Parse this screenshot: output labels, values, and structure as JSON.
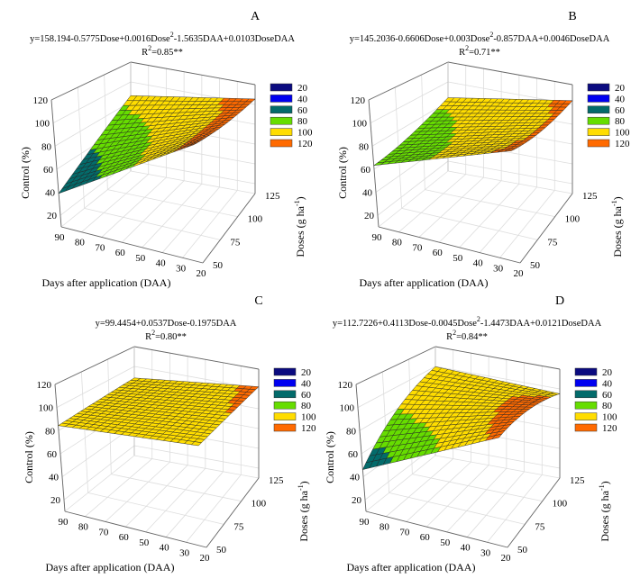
{
  "chart_data": [
    {
      "type": "surface3d",
      "panel_label": "A",
      "equation": {
        "pre": "y=158.194-0.5775Dose+0.0016Dose",
        "sup": "2",
        "post": "-1.5635DAA+0.0103DoseDAA"
      },
      "r2": {
        "pre": "R",
        "sup": "2",
        "post": "=0.85**"
      },
      "model": {
        "intercept": 158.194,
        "dose": -0.5775,
        "dose2": 0.0016,
        "daa": -1.5635,
        "dose_daa": 0.0103
      }
    },
    {
      "type": "surface3d",
      "panel_label": "B",
      "equation": {
        "pre": "y=145.2036-0.6606Dose+0.003Dose",
        "sup": "2",
        "post": "-0.857DAA+0.0046DoseDAA"
      },
      "r2": {
        "pre": "R",
        "sup": "2",
        "post": "=0.71**"
      },
      "model": {
        "intercept": 145.2036,
        "dose": -0.6606,
        "dose2": 0.003,
        "daa": -0.857,
        "dose_daa": 0.0046
      }
    },
    {
      "type": "surface3d",
      "panel_label": "C",
      "equation": {
        "pre": "y=99.4454+0.0537Dose-0.1975DAA",
        "sup": "",
        "post": ""
      },
      "r2": {
        "pre": "R",
        "sup": "2",
        "post": "=0.80**"
      },
      "model": {
        "intercept": 99.4454,
        "dose": 0.0537,
        "dose2": 0,
        "daa": -0.1975,
        "dose_daa": 0
      }
    },
    {
      "type": "surface3d",
      "panel_label": "D",
      "equation": {
        "pre": "y=112.7226+0.4113Dose-0.0045Dose",
        "sup": "2",
        "post": "-1.4473DAA+0.0121DoseDAA"
      },
      "r2": {
        "pre": "R",
        "sup": "2",
        "post": "=0.84**"
      },
      "model": {
        "intercept": 112.7226,
        "dose": 0.4113,
        "dose2": -0.0045,
        "daa": -1.4473,
        "dose_daa": 0.0121
      }
    }
  ],
  "axes": {
    "x_label": "Days after application (DAA)",
    "x_ticks": [
      "90",
      "80",
      "70",
      "60",
      "50",
      "40",
      "30",
      "20"
    ],
    "x_range": [
      90,
      20
    ],
    "y_label_pre": "Doses (g ha",
    "y_label_sup": "-1",
    "y_label_post": ")",
    "y_ticks": [
      "50",
      "75",
      "100",
      "125"
    ],
    "y_range": [
      50,
      125
    ],
    "z_label": "Control (%)",
    "z_ticks": [
      "20",
      "40",
      "60",
      "80",
      "100",
      "120"
    ],
    "z_range": [
      10,
      120
    ],
    "grid": true
  },
  "legend": {
    "placement": "right",
    "items": [
      {
        "label": "20",
        "color": "#0b0b80"
      },
      {
        "label": "40",
        "color": "#0000f0"
      },
      {
        "label": "60",
        "color": "#036b6b"
      },
      {
        "label": "80",
        "color": "#66dd00"
      },
      {
        "label": "100",
        "color": "#ffdd00"
      },
      {
        "label": "120",
        "color": "#ff6a00"
      }
    ]
  }
}
